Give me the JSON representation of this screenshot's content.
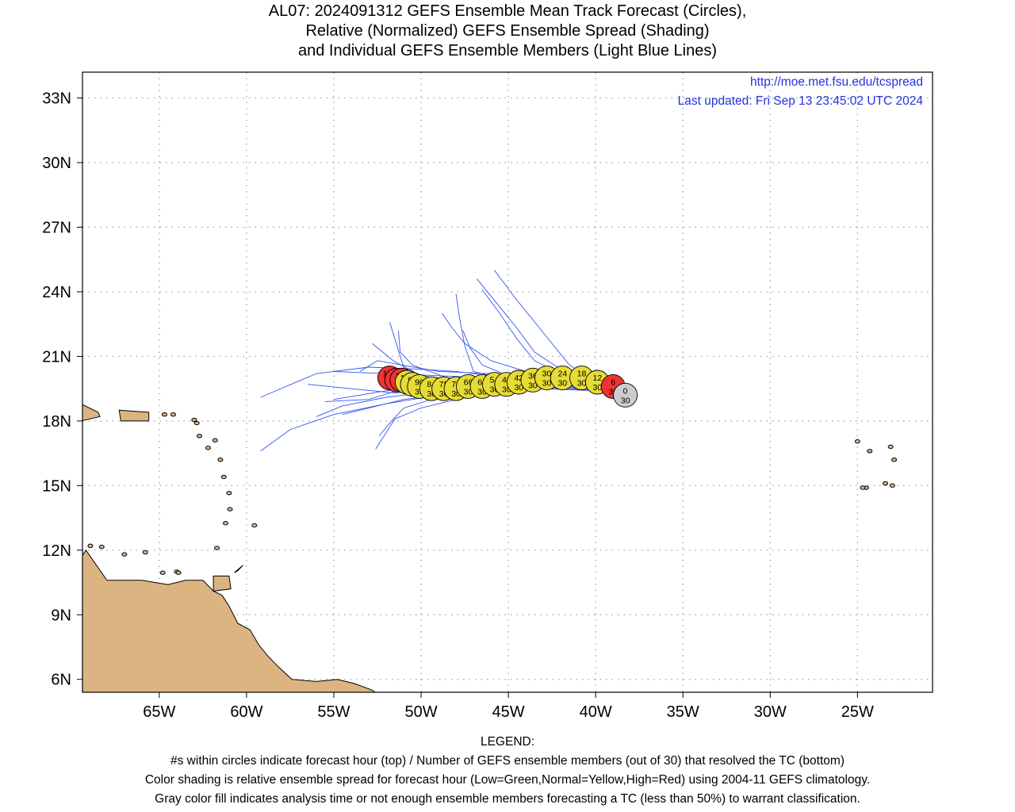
{
  "title": {
    "line1": "AL07: 2024091312 GEFS Ensemble Mean Track Forecast (Circles),",
    "line2": "Relative (Normalized) GEFS Ensemble Spread (Shading)",
    "line3": "and Individual GEFS Ensemble Members (Light Blue Lines)"
  },
  "credits": {
    "url": "http://moe.met.fsu.edu/tcspread",
    "updated": "Last updated: Fri Sep 13 23:45:02 UTC 2024"
  },
  "axes": {
    "lon_labels": [
      "65W",
      "60W",
      "55W",
      "50W",
      "45W",
      "40W",
      "35W",
      "30W",
      "25W"
    ],
    "lon_values": [
      -65,
      -60,
      -55,
      -50,
      -45,
      -40,
      -35,
      -30,
      -25
    ],
    "lat_labels": [
      "6N",
      "9N",
      "12N",
      "15N",
      "18N",
      "21N",
      "24N",
      "27N",
      "30N",
      "33N"
    ],
    "lat_values": [
      6,
      9,
      12,
      15,
      18,
      21,
      24,
      27,
      30,
      33
    ],
    "lon_range": [
      -69.4,
      -20.7
    ],
    "lat_range": [
      5.4,
      34.2
    ],
    "grid": "dotted"
  },
  "colors": {
    "low_spread": "#33cc33",
    "normal_spread": "#e6dc35",
    "high_spread": "#ee3333",
    "analysis_gray": "#cccccc",
    "member_tracks": "#3355ee",
    "land": "#dcb482",
    "credits_text": "#2233dd"
  },
  "chart_data": {
    "type": "map",
    "storm": "AL07",
    "init_time": "2024091312",
    "mean_track": [
      {
        "hour": 0,
        "members": 30,
        "lon": -38.3,
        "lat": 19.2,
        "spread": "gray"
      },
      {
        "hour": 6,
        "members": 30,
        "lon": -39.0,
        "lat": 19.6,
        "spread": "high"
      },
      {
        "hour": 12,
        "members": 30,
        "lon": -39.9,
        "lat": 19.8,
        "spread": "normal"
      },
      {
        "hour": 18,
        "members": 30,
        "lon": -40.8,
        "lat": 20.0,
        "spread": "normal"
      },
      {
        "hour": 24,
        "members": 30,
        "lon": -41.9,
        "lat": 20.0,
        "spread": "normal"
      },
      {
        "hour": 30,
        "members": 30,
        "lon": -42.8,
        "lat": 20.0,
        "spread": "normal"
      },
      {
        "hour": 36,
        "members": 30,
        "lon": -43.6,
        "lat": 19.9,
        "spread": "normal"
      },
      {
        "hour": 42,
        "members": 30,
        "lon": -44.4,
        "lat": 19.8,
        "spread": "normal"
      },
      {
        "hour": 48,
        "members": 30,
        "lon": -45.1,
        "lat": 19.7,
        "spread": "normal"
      },
      {
        "hour": 54,
        "members": 30,
        "lon": -45.8,
        "lat": 19.7,
        "spread": "normal"
      },
      {
        "hour": 60,
        "members": 30,
        "lon": -46.5,
        "lat": 19.6,
        "spread": "normal"
      },
      {
        "hour": 66,
        "members": 30,
        "lon": -47.3,
        "lat": 19.6,
        "spread": "normal"
      },
      {
        "hour": 72,
        "members": 30,
        "lon": -48.0,
        "lat": 19.5,
        "spread": "normal"
      },
      {
        "hour": 78,
        "members": 30,
        "lon": -48.7,
        "lat": 19.5,
        "spread": "normal"
      },
      {
        "hour": 84,
        "members": 30,
        "lon": -49.4,
        "lat": 19.5,
        "spread": "normal"
      },
      {
        "hour": 90,
        "members": 30,
        "lon": -50.1,
        "lat": 19.6,
        "spread": "normal"
      },
      {
        "hour": 96,
        "members": 30,
        "lon": -50.5,
        "lat": 19.7,
        "spread": "normal"
      },
      {
        "hour": 102,
        "members": 30,
        "lon": -50.8,
        "lat": 19.8,
        "spread": "normal"
      },
      {
        "hour": 108,
        "members": 30,
        "lon": -51.1,
        "lat": 19.9,
        "spread": "high"
      },
      {
        "hour": 114,
        "members": 30,
        "lon": -51.4,
        "lat": 19.9,
        "spread": "high"
      },
      {
        "hour": 120,
        "members": 30,
        "lon": -51.8,
        "lat": 20.0,
        "spread": "high"
      }
    ],
    "member_tracks": [
      [
        [
          -38.4,
          19.3
        ],
        [
          -40,
          19.6
        ],
        [
          -43,
          19.9
        ],
        [
          -46,
          20.0
        ],
        [
          -49,
          20.1
        ],
        [
          -52,
          20.2
        ],
        [
          -55,
          20.3
        ]
      ],
      [
        [
          -38.4,
          19.3
        ],
        [
          -40,
          19.5
        ],
        [
          -43,
          19.8
        ],
        [
          -46,
          19.8
        ],
        [
          -49,
          19.6
        ],
        [
          -52,
          19.4
        ],
        [
          -55,
          19.0
        ]
      ],
      [
        [
          -38.4,
          19.3
        ],
        [
          -40,
          19.4
        ],
        [
          -43,
          19.6
        ],
        [
          -46,
          19.5
        ],
        [
          -49,
          19.2
        ],
        [
          -52,
          18.8
        ],
        [
          -55,
          18.3
        ],
        [
          -57.5,
          17.6
        ],
        [
          -59.2,
          16.6
        ]
      ],
      [
        [
          -38.4,
          19.3
        ],
        [
          -40,
          19.7
        ],
        [
          -43,
          20.0
        ],
        [
          -46,
          20.1
        ],
        [
          -48,
          20.3
        ],
        [
          -50,
          20.4
        ],
        [
          -53,
          20.5
        ],
        [
          -56,
          20.2
        ],
        [
          -59.2,
          19.1
        ]
      ],
      [
        [
          -38.4,
          19.3
        ],
        [
          -40,
          19.6
        ],
        [
          -43,
          19.8
        ],
        [
          -45,
          19.9
        ],
        [
          -47,
          20.3
        ],
        [
          -47.5,
          21.5
        ],
        [
          -47.8,
          22.8
        ],
        [
          -48.0,
          23.9
        ]
      ],
      [
        [
          -38.4,
          19.3
        ],
        [
          -40,
          19.7
        ],
        [
          -42,
          20.2
        ],
        [
          -43.5,
          20.8
        ],
        [
          -44.5,
          21.8
        ],
        [
          -45.5,
          23.0
        ],
        [
          -46.5,
          24.1
        ]
      ],
      [
        [
          -38.4,
          19.3
        ],
        [
          -40,
          19.8
        ],
        [
          -42,
          20.4
        ],
        [
          -43.5,
          21.2
        ],
        [
          -44.5,
          22.3
        ],
        [
          -45.8,
          23.6
        ],
        [
          -46.8,
          24.6
        ]
      ],
      [
        [
          -38.4,
          19.3
        ],
        [
          -40,
          19.8
        ],
        [
          -41.5,
          20.6
        ],
        [
          -42.5,
          21.6
        ],
        [
          -43.3,
          22.4
        ],
        [
          -44.6,
          23.7
        ],
        [
          -45.8,
          25.0
        ]
      ],
      [
        [
          -38.4,
          19.3
        ],
        [
          -40,
          19.7
        ],
        [
          -42,
          20.0
        ],
        [
          -44,
          20.3
        ],
        [
          -46,
          20.8
        ],
        [
          -47.5,
          21.6
        ],
        [
          -48.2,
          22.3
        ],
        [
          -48.8,
          23.0
        ]
      ],
      [
        [
          -38.4,
          19.3
        ],
        [
          -40,
          19.5
        ],
        [
          -43,
          19.5
        ],
        [
          -46,
          19.3
        ],
        [
          -48,
          19.0
        ],
        [
          -50,
          18.6
        ],
        [
          -51.5,
          18.1
        ],
        [
          -52.6,
          16.7
        ]
      ],
      [
        [
          -38.4,
          19.3
        ],
        [
          -40,
          19.6
        ],
        [
          -43,
          19.7
        ],
        [
          -46,
          19.6
        ],
        [
          -48,
          19.5
        ],
        [
          -50,
          19.5
        ],
        [
          -51,
          20.5
        ],
        [
          -51.5,
          21.8
        ],
        [
          -51.8,
          22.6
        ]
      ],
      [
        [
          -38.4,
          19.3
        ],
        [
          -40,
          19.6
        ],
        [
          -43,
          19.8
        ],
        [
          -46,
          19.8
        ],
        [
          -48,
          19.9
        ],
        [
          -50,
          20.1
        ],
        [
          -51.6,
          20.8
        ],
        [
          -52.8,
          21.6
        ]
      ],
      [
        [
          -38.4,
          19.3
        ],
        [
          -40,
          19.5
        ],
        [
          -43,
          19.7
        ],
        [
          -46,
          19.6
        ],
        [
          -49,
          19.4
        ],
        [
          -52,
          19.1
        ],
        [
          -54.5,
          18.7
        ],
        [
          -56,
          18.2
        ]
      ],
      [
        [
          -38.4,
          19.3
        ],
        [
          -40,
          19.5
        ],
        [
          -43,
          19.6
        ],
        [
          -46,
          19.4
        ],
        [
          -49,
          19.2
        ],
        [
          -51,
          19.0
        ],
        [
          -53,
          18.6
        ],
        [
          -54.5,
          18.3
        ]
      ],
      [
        [
          -38.4,
          19.3
        ],
        [
          -40,
          19.6
        ],
        [
          -43,
          19.7
        ],
        [
          -46,
          19.7
        ],
        [
          -49,
          19.7
        ],
        [
          -51,
          19.5
        ],
        [
          -53,
          19.0
        ],
        [
          -55.5,
          18.9
        ]
      ],
      [
        [
          -38.4,
          19.3
        ],
        [
          -40,
          19.6
        ],
        [
          -43,
          19.9
        ],
        [
          -45,
          20.1
        ],
        [
          -46.5,
          20.6
        ],
        [
          -47.2,
          21.4
        ],
        [
          -47.6,
          22.2
        ]
      ],
      [
        [
          -38.4,
          19.3
        ],
        [
          -40,
          19.4
        ],
        [
          -43,
          19.5
        ],
        [
          -46,
          19.4
        ],
        [
          -49,
          19.1
        ],
        [
          -51,
          18.6
        ],
        [
          -51.8,
          17.9
        ],
        [
          -52.4,
          17.3
        ]
      ],
      [
        [
          -38.4,
          19.3
        ],
        [
          -40,
          19.7
        ],
        [
          -43,
          20.0
        ],
        [
          -46,
          20.2
        ],
        [
          -49,
          20.3
        ],
        [
          -52.5,
          20.8
        ],
        [
          -53.5,
          20.3
        ]
      ],
      [
        [
          -38.4,
          19.3
        ],
        [
          -40,
          19.6
        ],
        [
          -43,
          19.8
        ],
        [
          -46,
          19.9
        ],
        [
          -48.5,
          20.0
        ],
        [
          -50.5,
          20.6
        ],
        [
          -51.2,
          21.2
        ],
        [
          -51.3,
          22.2
        ]
      ],
      [
        [
          -38.4,
          19.3
        ],
        [
          -40,
          19.6
        ],
        [
          -43,
          19.7
        ],
        [
          -46,
          19.6
        ],
        [
          -49,
          19.4
        ],
        [
          -51.5,
          19.3
        ],
        [
          -54,
          19.5
        ],
        [
          -56.5,
          19.7
        ]
      ]
    ]
  },
  "legend": {
    "line1": "LEGEND:",
    "line2": "#s within circles indicate forecast hour (top) / Number of GEFS ensemble members (out of 30) that resolved the TC (bottom)",
    "line3": "Color shading is relative ensemble spread for forecast hour (Low=Green,Normal=Yellow,High=Red) using 2004-11 GEFS climatology.",
    "line4": "Gray color fill indicates analysis time or not enough ensemble members forecasting a TC (less than 50%) to warrant classification."
  }
}
